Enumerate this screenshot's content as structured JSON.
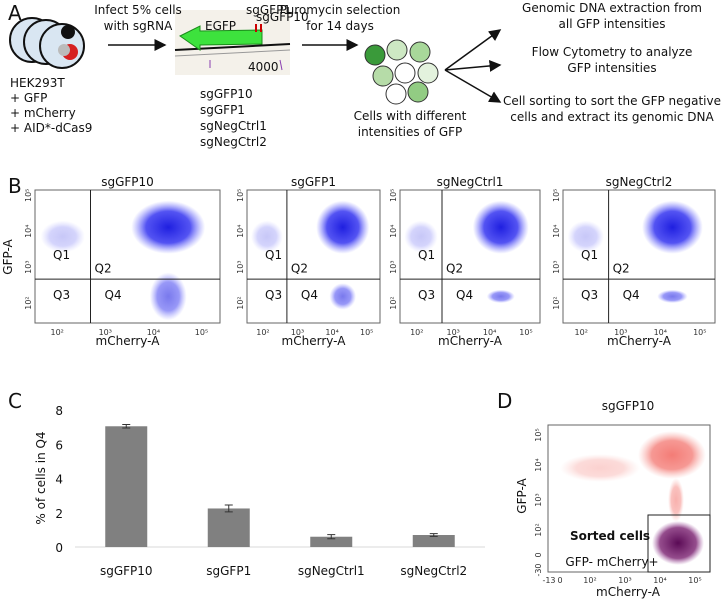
{
  "panel_a": {
    "label": "A",
    "cell_line": [
      "HEK293T",
      "+ GFP",
      "+ mCherry",
      "+ AID*-dCas9"
    ],
    "step1": [
      "Infect 5% cells",
      "with sgRNA"
    ],
    "plasmid": {
      "guides": [
        "sgGFP1",
        "sgGFP10"
      ],
      "gene": "EGFP",
      "position": "4000"
    },
    "sgrnas": [
      "sgGFP10",
      "sgGFP1",
      "sgNegCtrl1",
      "sgNegCtrl2"
    ],
    "step2": [
      "Puromycin selection",
      "for 14 days"
    ],
    "cells_caption": [
      "Cells with different",
      "intensities of GFP"
    ],
    "outcomes": [
      [
        "Genomic DNA extraction from",
        "all GFP intensities"
      ],
      [
        "Flow Cytometry to analyze",
        "GFP intensities"
      ],
      [
        "Cell sorting to sort the GFP negative",
        "cells and extract its genomic DNA"
      ]
    ]
  },
  "panel_b": {
    "label": "B",
    "y_label": "GFP-A",
    "x_label": "mCherry-A",
    "quadrants": [
      "Q1",
      "Q2",
      "Q3",
      "Q4"
    ],
    "ticks": [
      "10²",
      "10³",
      "10⁴",
      "10⁵"
    ],
    "plots": [
      "sgGFP10",
      "sgGFP1",
      "sgNegCtrl1",
      "sgNegCtrl2"
    ]
  },
  "chart_data": {
    "type": "bar",
    "label": "C",
    "y_label": "% of cells in Q4",
    "categories": [
      "sgGFP10",
      "sgGFP1",
      "sgNegCtrl1",
      "sgNegCtrl2"
    ],
    "values": [
      7.05,
      2.25,
      0.6,
      0.7
    ],
    "errors": [
      0.1,
      0.2,
      0.12,
      0.08
    ],
    "color": "#808080",
    "ylim": [
      0,
      8
    ],
    "yticks": [
      0,
      2,
      4,
      6,
      8
    ]
  },
  "panel_d": {
    "label": "D",
    "title": "sgGFP10",
    "y_label": "GFP-A",
    "x_label": "mCherry-A",
    "gate": "Sorted cells",
    "gate_label": "GFP- mCherry+",
    "y_ticks": [
      "10⁵",
      "10⁴",
      "10³",
      "10²",
      "0",
      "-30"
    ],
    "x_ticks": [
      "-13",
      "0",
      "10²",
      "10³",
      "10⁴",
      "10⁵"
    ]
  }
}
